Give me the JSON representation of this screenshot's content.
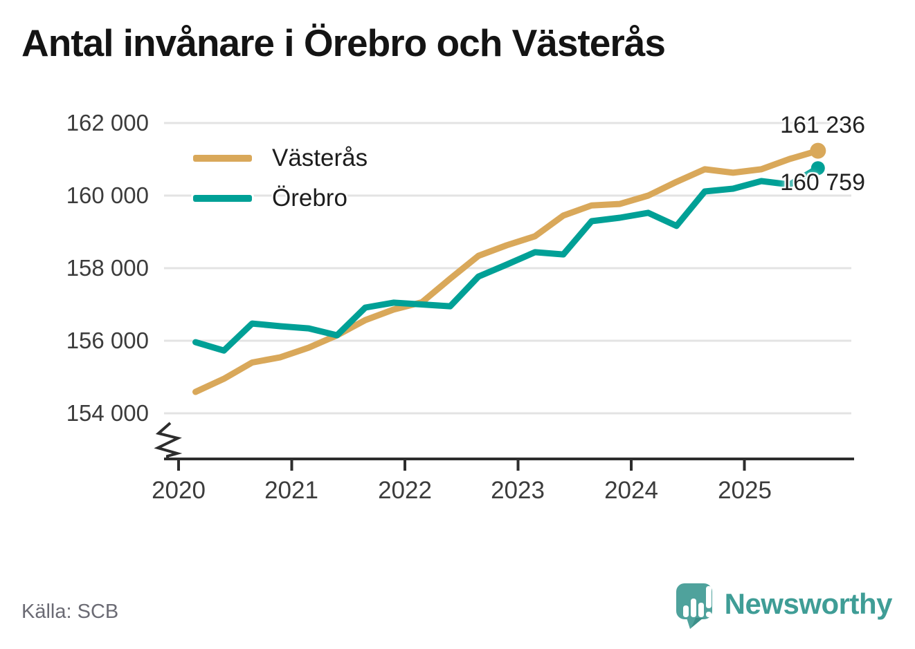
{
  "title": "Antal invånare i Örebro och Västerås",
  "source": "Källa: SCB",
  "brand": {
    "name": "Newsworthy",
    "color": "#3f9d96",
    "icon": "newsworthy-speech-bubble-chart-icon"
  },
  "colors": {
    "vasteras_line": "#D9A85A",
    "orebro_line": "#00A096",
    "grid": "#E3E3E3",
    "axis": "#2D2D2D",
    "title_text": "#141414",
    "tick_text": "#3C3C3C",
    "source_text": "#6B6B74"
  },
  "chart_data": {
    "type": "line",
    "title": "Antal invånare i Örebro och Västerås",
    "x_unit": "quarter",
    "x": [
      "2020 Q1",
      "2020 Q2",
      "2020 Q3",
      "2020 Q4",
      "2021 Q1",
      "2021 Q2",
      "2021 Q3",
      "2021 Q4",
      "2022 Q1",
      "2022 Q2",
      "2022 Q3",
      "2022 Q4",
      "2023 Q1",
      "2023 Q2",
      "2023 Q3",
      "2023 Q4",
      "2024 Q1",
      "2024 Q2",
      "2024 Q3",
      "2024 Q4",
      "2025 Q1",
      "2025 Q2",
      "2025 Q3"
    ],
    "series": [
      {
        "name": "Västerås",
        "color": "#D9A85A",
        "end_value": 161236,
        "end_value_label": "161 236",
        "values": [
          154590,
          154950,
          155400,
          155545,
          155810,
          156150,
          156570,
          156860,
          157060,
          157710,
          158340,
          158630,
          158880,
          159450,
          159730,
          159770,
          160000,
          160380,
          160725,
          160630,
          160725,
          161010,
          161236
        ]
      },
      {
        "name": "Örebro",
        "color": "#00A096",
        "end_value": 160759,
        "end_value_label": "160 759",
        "values": [
          155960,
          155730,
          156475,
          156400,
          156340,
          156150,
          156915,
          157050,
          157000,
          156950,
          157770,
          158100,
          158440,
          158380,
          159295,
          159390,
          159525,
          159165,
          160115,
          160190,
          160400,
          160305,
          160759
        ]
      }
    ],
    "y_ticks": {
      "values": [
        162000,
        160000,
        158000,
        156000,
        154000
      ],
      "labels": [
        "162 000",
        "160 000",
        "158 000",
        "156 000",
        "154 000"
      ]
    },
    "x_ticks": {
      "values": [
        2020,
        2021,
        2022,
        2023,
        2024,
        2025
      ],
      "labels": [
        "2020",
        "2021",
        "2022",
        "2023",
        "2024",
        "2025"
      ]
    },
    "ylim": [
      153300,
      162600
    ],
    "axis_break": true,
    "grid": "horizontal",
    "legend_position": "top-left-inside"
  }
}
